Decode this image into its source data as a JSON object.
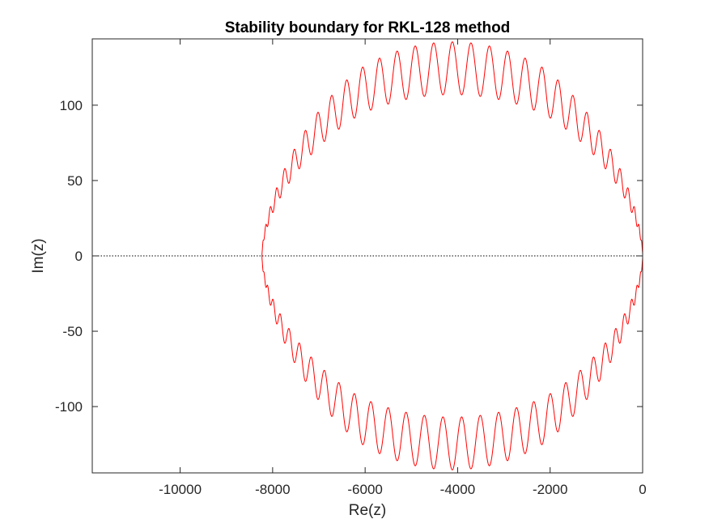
{
  "chart_data": {
    "type": "line",
    "title": "Stability boundary for RKL-128 method",
    "xlabel": "Re(z)",
    "ylabel": "Im(z)",
    "xlim": [
      -11900,
      0
    ],
    "ylim": [
      -144,
      144
    ],
    "xticks": [
      -10000,
      -8000,
      -6000,
      -4000,
      -2000,
      0
    ],
    "yticks": [
      -100,
      -50,
      0,
      50,
      100
    ],
    "grid": false,
    "series": [
      {
        "color": "#ff0000",
        "curve": "closed oscillating boundary",
        "x_range": [
          -8230,
          0
        ],
        "y_envelope_max": 142,
        "y_envelope_min": 107,
        "oscillations": 64
      }
    ],
    "reference_line": {
      "y": 0,
      "style": "dotted",
      "color": "#000000"
    }
  }
}
